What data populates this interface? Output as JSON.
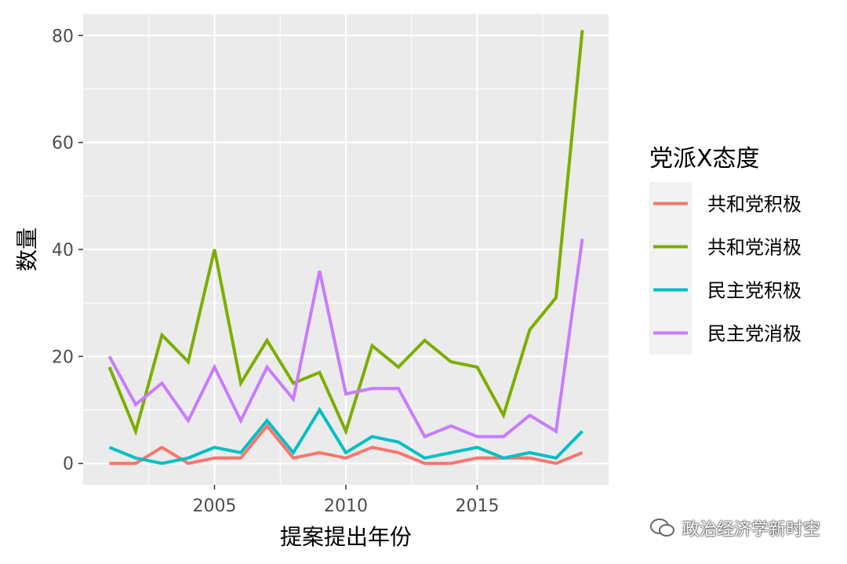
{
  "chart_data": {
    "type": "line",
    "xlabel": "提案提出年份",
    "ylabel": "数量",
    "xlim": [
      2000.0,
      2020.0
    ],
    "ylim": [
      -4,
      84
    ],
    "x_ticks": [
      2005,
      2010,
      2015
    ],
    "y_ticks": [
      0,
      20,
      40,
      60,
      80
    ],
    "grid": true,
    "legend_title": "党派X态度",
    "legend_position": "right",
    "x": [
      2001,
      2002,
      2003,
      2004,
      2005,
      2006,
      2007,
      2008,
      2009,
      2010,
      2011,
      2012,
      2013,
      2014,
      2015,
      2016,
      2017,
      2018,
      2019
    ],
    "series": [
      {
        "name": "共和党积极",
        "color": "#F8766D",
        "values": [
          0,
          0,
          3,
          0,
          1,
          1,
          7,
          1,
          2,
          1,
          3,
          2,
          0,
          0,
          1,
          1,
          1,
          0,
          2
        ]
      },
      {
        "name": "共和党消极",
        "color": "#7CAE00",
        "values": [
          18,
          6,
          24,
          19,
          40,
          15,
          23,
          15,
          17,
          6,
          22,
          18,
          23,
          19,
          18,
          9,
          25,
          31,
          81
        ]
      },
      {
        "name": "民主党积极",
        "color": "#00BFC4",
        "values": [
          3,
          1,
          0,
          1,
          3,
          2,
          8,
          2,
          10,
          2,
          5,
          4,
          1,
          2,
          3,
          1,
          2,
          1,
          6
        ]
      },
      {
        "name": "民主党消极",
        "color": "#C77CFF",
        "values": [
          20,
          11,
          15,
          8,
          18,
          8,
          18,
          12,
          36,
          13,
          14,
          14,
          5,
          7,
          5,
          5,
          9,
          6,
          42
        ]
      }
    ]
  },
  "watermark": {
    "text": "政治经济学新时空",
    "icon": "wechat-icon"
  }
}
